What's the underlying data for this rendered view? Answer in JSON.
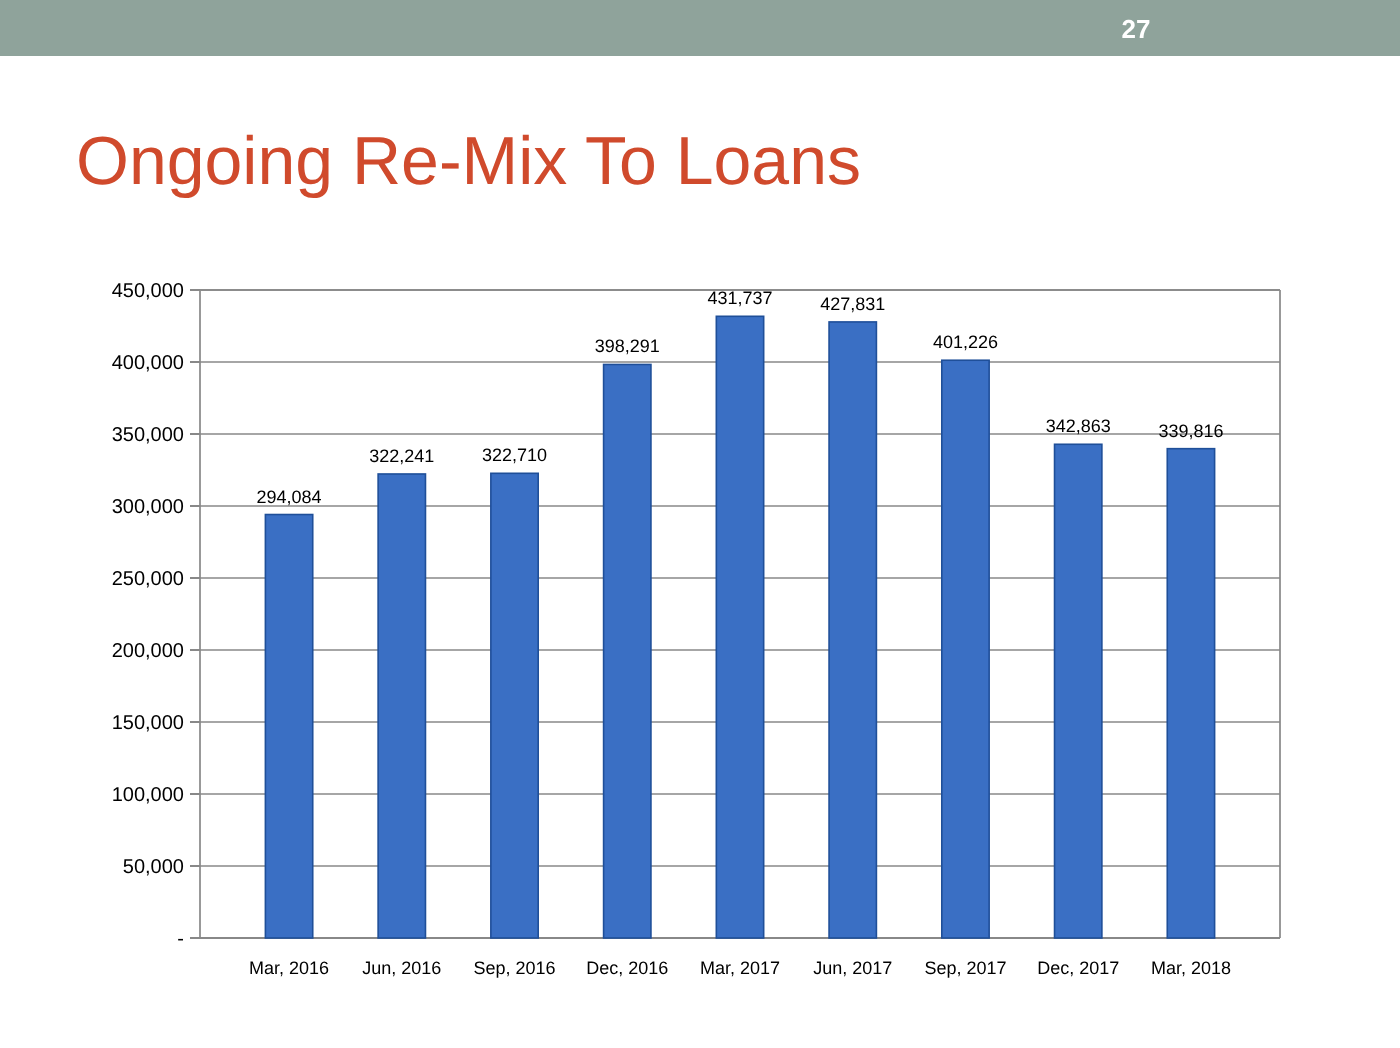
{
  "chart_data": {
    "type": "bar",
    "title": "Ongoing Re-Mix To Loans",
    "annotations": [
      "27"
    ],
    "categories": [
      "Mar, 2016",
      "Jun, 2016",
      "Sep, 2016",
      "Dec, 2016",
      "Mar, 2017",
      "Jun, 2017",
      "Sep, 2017",
      "Dec, 2017",
      "Mar, 2018"
    ],
    "values": [
      294084,
      322241,
      322710,
      398291,
      431737,
      427831,
      401226,
      342863,
      339816
    ],
    "color": "#3a6fc4",
    "ylim": [
      0,
      450000
    ],
    "yticks": [
      {
        "value": 0,
        "label": "-"
      },
      {
        "value": 50000,
        "label": "50,000"
      },
      {
        "value": 100000,
        "label": "100,000"
      },
      {
        "value": 150000,
        "label": "150,000"
      },
      {
        "value": 200000,
        "label": "200,000"
      },
      {
        "value": 250000,
        "label": "250,000"
      },
      {
        "value": 300000,
        "label": "300,000"
      },
      {
        "value": 350000,
        "label": "350,000"
      },
      {
        "value": 400000,
        "label": "400,000"
      },
      {
        "value": 450000,
        "label": "450,000"
      }
    ],
    "value_labels": [
      "294,084",
      "322,241",
      "322,710",
      "398,291",
      "431,737",
      "427,831",
      "401,226",
      "342,863",
      "339,816"
    ],
    "grid": "y"
  }
}
